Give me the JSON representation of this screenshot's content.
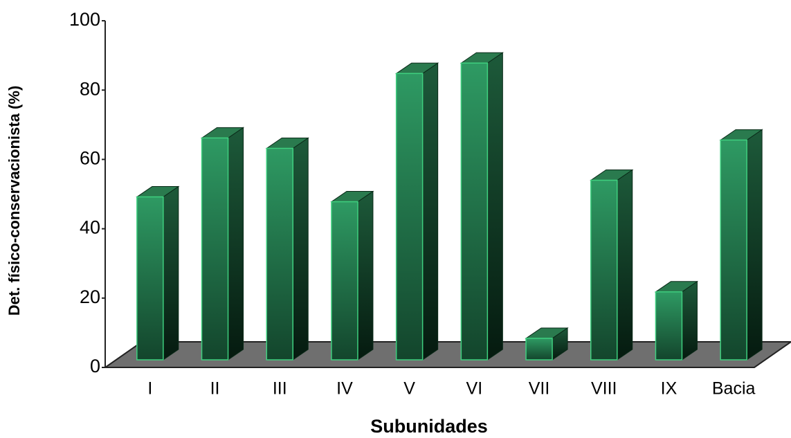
{
  "chart_data": {
    "type": "bar3d",
    "x_label": "Subunidades",
    "y_label": "Det. físico-conservacionista (%)",
    "categories": [
      "I",
      "II",
      "III",
      "IV",
      "V",
      "VI",
      "VII",
      "VIII",
      "IX",
      "Bacia"
    ],
    "values": [
      47,
      64,
      61,
      45.6,
      82.6,
      85.6,
      6.2,
      51.8,
      19.6,
      63.4
    ],
    "color": "#2e9a63",
    "ylim": [
      0,
      100
    ],
    "yticks": [
      0,
      20,
      40,
      60,
      80,
      100
    ]
  }
}
